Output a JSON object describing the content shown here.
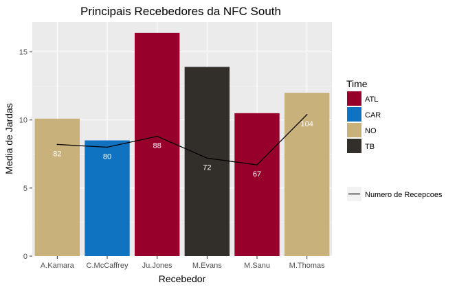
{
  "chart_data": {
    "type": "bar",
    "title": "Principais Recebedores da NFC South",
    "xlabel": "Recebedor",
    "ylabel": "Media de Jardas",
    "ylim": [
      0,
      17.2
    ],
    "yticks": [
      0,
      5,
      10,
      15
    ],
    "grid": true,
    "legend_position": "right",
    "categories": [
      "A.Kamara",
      "C.McCaffrey",
      "Ju.Jones",
      "M.Evans",
      "M.Sanu",
      "M.Thomas"
    ],
    "bars": {
      "values": [
        10.1,
        8.5,
        16.4,
        13.9,
        10.5,
        12.0
      ],
      "teams": [
        "NO",
        "CAR",
        "ATL",
        "TB",
        "ATL",
        "NO"
      ]
    },
    "line": {
      "name": "Numero de Recepcoes",
      "plotted_values": [
        8.2,
        8.0,
        8.8,
        7.2,
        6.7,
        10.4
      ],
      "labels": [
        "82",
        "80",
        "88",
        "72",
        "67",
        "104"
      ],
      "color": "#000000"
    },
    "fill_legend": {
      "title": "Time",
      "entries": [
        {
          "label": "ATL",
          "color": "#97002A"
        },
        {
          "label": "CAR",
          "color": "#0F73C2"
        },
        {
          "label": "NO",
          "color": "#C9B17C"
        },
        {
          "label": "TB",
          "color": "#322F2B"
        }
      ]
    }
  }
}
